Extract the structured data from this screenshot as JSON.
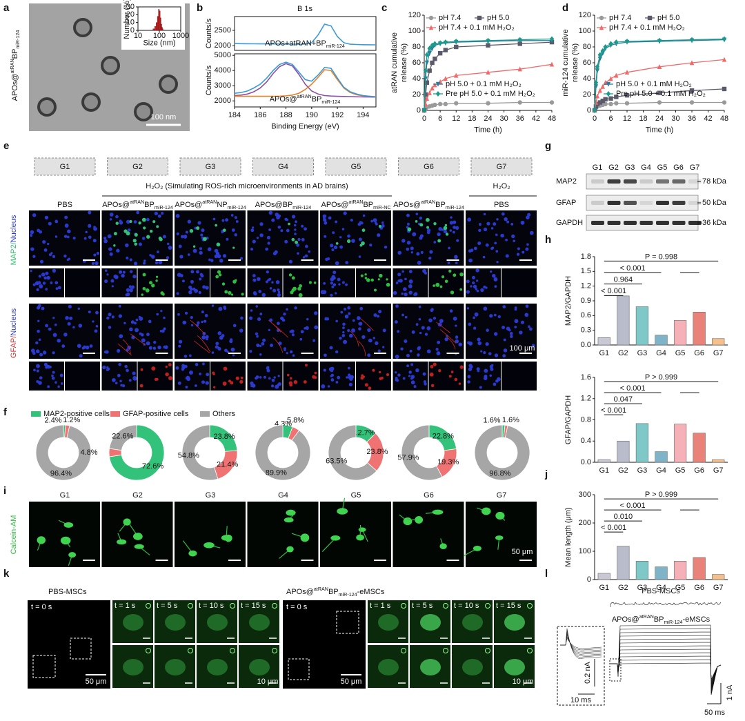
{
  "figure": {
    "panel_labels": [
      "a",
      "b",
      "c",
      "d",
      "e",
      "f",
      "g",
      "h",
      "i",
      "j",
      "k",
      "l"
    ],
    "a": {
      "sample": [
        "APOs@",
        {
          "sup": "atRAN"
        },
        "BP",
        {
          "sub": "miR-124"
        }
      ],
      "scale": "100 nm"
    },
    "e": {
      "groups": [
        "G1",
        "G2",
        "G3",
        "G4",
        "G5",
        "G6",
        "G7"
      ],
      "condition": "H₂O₂ (Simulating ROS-rich microenvironments in AD brains)",
      "condition_g7": "H₂O₂",
      "treatments": [
        [
          "PBS"
        ],
        [
          "APOs@",
          {
            "sup": "atRAN"
          },
          "BP",
          {
            "sub": "miR-124"
          }
        ],
        [
          "APOs@",
          {
            "sup": "atRAN"
          },
          "NP",
          {
            "sub": "miR-124"
          }
        ],
        [
          "APOs@BP",
          {
            "sub": "miR-124"
          }
        ],
        [
          "APOs@",
          {
            "sup": "atRAN"
          },
          "BP",
          {
            "sub": "miR-NC"
          }
        ],
        [
          "APOs@",
          {
            "sup": "atRAN"
          },
          "BP",
          {
            "sub": "miR-124"
          }
        ],
        [
          "PBS"
        ]
      ],
      "rows": [
        [
          {
            "text": "MAP2",
            "color": "#2fbf6f"
          },
          {
            "text": "/",
            "color": "#2fbf6f"
          },
          {
            "text": "Nucleus",
            "color": "#2b3bd6"
          }
        ],
        [
          {
            "text": "GFAP",
            "color": "#e03030"
          },
          {
            "text": "/",
            "color": "#e03030"
          },
          {
            "text": "Nucleus",
            "color": "#2b3bd6"
          }
        ]
      ],
      "scale": "100 μm"
    },
    "g": {
      "lanes": [
        "G1",
        "G2",
        "G3",
        "G4",
        "G5",
        "G6",
        "G7"
      ],
      "proteins": [
        "MAP2",
        "GFAP",
        "GAPDH"
      ],
      "markers": [
        "78 kDa",
        "50 kDa",
        "36 kDa"
      ]
    },
    "i": {
      "stain": [
        {
          "text": "Calcein-AM",
          "color": "#2fbf3f"
        }
      ],
      "groups": [
        "G1",
        "G2",
        "G3",
        "G4",
        "G5",
        "G6",
        "G7"
      ],
      "scale": "50 μm"
    },
    "k": {
      "control": "PBS-MSCs",
      "treated": [
        "APOs@",
        {
          "sup": "atRAN"
        },
        "BP",
        {
          "sub": "miR-124"
        },
        "-eMSCs"
      ],
      "times": [
        "t = 0 s",
        "t = 1 s",
        "t = 5 s",
        "t = 10 s",
        "t = 15 s"
      ],
      "scale_large": "50 μm",
      "scale_small": "10 μm"
    },
    "l": {
      "control": "PBS-MSCs",
      "treated": [
        "APOs@",
        {
          "sup": "atRAN"
        },
        "BP",
        {
          "sub": "miR-124"
        },
        "-eMSCs"
      ],
      "inset_current": "0.2 nA",
      "inset_time": "10 ms",
      "current": "1 nA",
      "time": "50 ms"
    }
  },
  "chart_data": [
    {
      "type": "line",
      "title": "B 1s",
      "ylabel": "Counts/s",
      "annotation": [
        "APOs+atRAN+BP",
        {
          "sub": "miR-124"
        }
      ],
      "xlim": [
        184,
        195
      ],
      "ylim": [
        1850,
        2950
      ],
      "yticks": [
        2000,
        2500
      ],
      "x": [
        184,
        184.5,
        185,
        185.5,
        186,
        186.5,
        187,
        187.5,
        188,
        188.5,
        189,
        189.5,
        190,
        190.5,
        191,
        191.5,
        192,
        192.5,
        193,
        193.5,
        194,
        194.5,
        195
      ],
      "series": [
        {
          "color": "#3a9ad9",
          "values": [
            2070,
            2068,
            2066,
            2064,
            2062,
            2060,
            2058,
            2056,
            2054,
            2052,
            2050,
            2055,
            2100,
            2350,
            2700,
            2650,
            2300,
            2100,
            2050,
            2040,
            2035,
            2032,
            2030
          ]
        }
      ]
    },
    {
      "type": "line",
      "ylabel": "Counts/s",
      "xlabel": "Binding Energy (eV)",
      "annotation": [
        "APOs@",
        {
          "sup": "atRAN"
        },
        "BP",
        {
          "sub": "miR-124"
        }
      ],
      "xlim": [
        184,
        195
      ],
      "xticks": [
        184,
        186,
        188,
        190,
        192,
        194
      ],
      "ylim": [
        1600,
        5100
      ],
      "yticks": [
        2000,
        3000,
        4000,
        5000
      ],
      "x": [
        184,
        184.5,
        185,
        185.5,
        186,
        186.5,
        187,
        187.5,
        188,
        188.5,
        189,
        189.5,
        190,
        190.5,
        191,
        191.5,
        192,
        192.5,
        193,
        193.5,
        194,
        194.5,
        195
      ],
      "series": [
        {
          "color": "#8a4fa8",
          "values": [
            2350,
            2380,
            2450,
            2600,
            2850,
            3250,
            3800,
            4250,
            4450,
            4300,
            3750,
            3100,
            2650,
            2450,
            2350,
            2320,
            2300,
            2290,
            2280,
            2270,
            2260,
            2255,
            2250
          ]
        },
        {
          "color": "#e8802a",
          "values": [
            2300,
            2300,
            2300,
            2300,
            2300,
            2300,
            2300,
            2310,
            2330,
            2380,
            2500,
            2750,
            3100,
            3550,
            4050,
            4000,
            3400,
            2850,
            2550,
            2400,
            2330,
            2300,
            2280
          ]
        },
        {
          "color": "#3a9ad9",
          "values": [
            2500,
            2550,
            2650,
            2850,
            3100,
            3500,
            4000,
            4400,
            4550,
            4400,
            3900,
            3400,
            3300,
            3700,
            4200,
            4150,
            3500,
            2900,
            2600,
            2450,
            2350,
            2300,
            2250
          ]
        }
      ]
    },
    {
      "type": "line",
      "xlabel": "Time (h)",
      "ylabel": [
        "atRAN cumulative",
        "release (%)"
      ],
      "xlim": [
        0,
        48
      ],
      "xticks": [
        0,
        6,
        12,
        18,
        24,
        30,
        36,
        42,
        48
      ],
      "ylim": [
        0,
        120
      ],
      "yticks": [
        0,
        20,
        40,
        60,
        80,
        100,
        120
      ],
      "x": [
        0,
        0.5,
        1,
        2,
        3,
        4,
        6,
        8,
        12,
        24,
        36,
        48
      ],
      "series": [
        {
          "name": "pH 7.4",
          "color": "#9a9a9a",
          "marker": "circle",
          "values": [
            0,
            2,
            4,
            5,
            6,
            7,
            8,
            8,
            9,
            9,
            10,
            10
          ]
        },
        {
          "name": "pH 5.0",
          "color": "#5a5a6a",
          "marker": "square",
          "values": [
            0,
            20,
            35,
            50,
            60,
            65,
            72,
            76,
            80,
            82,
            84,
            86
          ]
        },
        {
          "name": "pH 7.4 + 0.1 mM H₂O₂",
          "color": "#f06a6a",
          "marker": "triangle",
          "values": [
            0,
            8,
            15,
            22,
            28,
            32,
            36,
            40,
            44,
            48,
            52,
            58
          ]
        },
        {
          "name": "pH 5.0 + 0.1 mM H₂O₂",
          "color": "#2b7c9c",
          "marker": "down-triangle",
          "values": [
            0,
            40,
            60,
            72,
            78,
            82,
            84,
            85,
            86,
            87,
            88,
            88
          ]
        },
        {
          "name": "Pre pH 5.0 + 0.1 mM H₂O₂",
          "color": "#1a9a8a",
          "marker": "diamond",
          "values": [
            0,
            50,
            70,
            78,
            82,
            84,
            85,
            86,
            87,
            88,
            89,
            90
          ]
        }
      ]
    },
    {
      "type": "line",
      "xlabel": "Time (h)",
      "ylabel": [
        "miR-124 cumulative",
        "release (%)"
      ],
      "xlim": [
        0,
        48
      ],
      "xticks": [
        0,
        6,
        12,
        18,
        24,
        30,
        36,
        42,
        48
      ],
      "ylim": [
        0,
        120
      ],
      "yticks": [
        0,
        20,
        40,
        60,
        80,
        100,
        120
      ],
      "x": [
        0,
        0.5,
        1,
        2,
        3,
        4,
        6,
        8,
        12,
        24,
        36,
        48
      ],
      "series": [
        {
          "name": "pH 7.4",
          "color": "#9a9a9a",
          "marker": "circle",
          "values": [
            0,
            3,
            5,
            6,
            7,
            8,
            8,
            9,
            9,
            10,
            10,
            10
          ]
        },
        {
          "name": "pH 5.0",
          "color": "#5a5a6a",
          "marker": "square",
          "values": [
            0,
            5,
            8,
            10,
            12,
            14,
            15,
            17,
            19,
            22,
            25,
            27
          ]
        },
        {
          "name": "pH 7.4 + 0.1 mM H₂O₂",
          "color": "#f06a6a",
          "marker": "triangle",
          "values": [
            0,
            10,
            18,
            25,
            30,
            35,
            40,
            44,
            48,
            55,
            60,
            64
          ]
        },
        {
          "name": "pH 5.0 + 0.1 mM H₂O₂",
          "color": "#2b7c9c",
          "marker": "down-triangle",
          "values": [
            0,
            30,
            50,
            65,
            72,
            78,
            82,
            84,
            86,
            87,
            88,
            89
          ]
        },
        {
          "name": "Pre pH 5.0 + 0.1 mM H₂O₂",
          "color": "#1a9a8a",
          "marker": "diamond",
          "values": [
            0,
            35,
            55,
            70,
            75,
            80,
            84,
            86,
            87,
            88,
            89,
            90
          ]
        }
      ]
    },
    {
      "type": "bar",
      "ylabel": "MAP2/GAPDH",
      "categories": [
        "G1",
        "G2",
        "G3",
        "G4",
        "G5",
        "G6",
        "G7"
      ],
      "values": [
        0.15,
        1.0,
        0.78,
        0.2,
        0.5,
        0.67,
        0.13
      ],
      "colors": [
        "#c9c9d6",
        "#b8bccb",
        "#7fc8c8",
        "#7fb3c8",
        "#f5b0b8",
        "#e9837a",
        "#f5c08a"
      ],
      "ylim": [
        0,
        1.8
      ],
      "yticks": [
        {
          "value": 0,
          "label": "0.0"
        },
        0.3,
        0.6,
        0.9,
        1.2,
        1.5,
        1.8
      ],
      "annotations": [
        "< 0.001",
        "0.964",
        "< 0.001",
        "P = 0.998"
      ]
    },
    {
      "type": "bar",
      "ylabel": "GFAP/GAPDH",
      "categories": [
        "G1",
        "G2",
        "G3",
        "G4",
        "G5",
        "G6",
        "G7"
      ],
      "values": [
        0.05,
        0.4,
        0.73,
        0.2,
        0.72,
        0.55,
        0.05
      ],
      "colors": [
        "#c9c9d6",
        "#b8bccb",
        "#7fc8c8",
        "#7fb3c8",
        "#f5b0b8",
        "#e9837a",
        "#f5c08a"
      ],
      "ylim": [
        0,
        1.6
      ],
      "yticks": [
        {
          "value": 0,
          "label": "0.0"
        },
        0.4,
        0.8,
        1.2,
        1.6
      ],
      "annotations": [
        "< 0.001",
        "0.047",
        "< 0.001",
        "P > 0.999"
      ]
    },
    {
      "type": "bar",
      "ylabel": "Mean length (μm)",
      "categories": [
        "G1",
        "G2",
        "G3",
        "G4",
        "G5",
        "G6",
        "G7"
      ],
      "values": [
        22,
        118,
        65,
        45,
        65,
        78,
        18
      ],
      "colors": [
        "#c9c9d6",
        "#b8bccb",
        "#7fc8c8",
        "#7fb3c8",
        "#f5b0b8",
        "#e9837a",
        "#f5c08a"
      ],
      "ylim": [
        0,
        300
      ],
      "yticks": [
        0,
        100,
        200,
        300
      ],
      "annotations": [
        "< 0.001",
        "0.010",
        "< 0.001",
        "P > 0.999"
      ]
    },
    {
      "type": "donut",
      "categories": [
        "MAP2-positive cells",
        "GFAP-positive cells",
        "Others"
      ],
      "colors": [
        "#33c27a",
        "#f07373",
        "#a6a6a6"
      ],
      "groups": [
        {
          "values": [
            1.2,
            2.4,
            96.4
          ],
          "value_labels": [
            "1.2%",
            "2.4%",
            "96.4%"
          ]
        },
        {
          "values": [
            72.6,
            4.8,
            22.6
          ],
          "value_labels": [
            "72.6%",
            "4.8%",
            "22.6%"
          ]
        },
        {
          "values": [
            23.8,
            21.4,
            54.8
          ],
          "value_labels": [
            "23.8%",
            "21.4%",
            "54.8%"
          ]
        },
        {
          "values": [
            5.8,
            4.3,
            89.9
          ],
          "value_labels": [
            "5.8%",
            "4.3%",
            "89.9%"
          ]
        },
        {
          "values": [
            12.7,
            23.8,
            63.5
          ],
          "value_labels": [
            "12.7%",
            "23.8%",
            "63.5%"
          ]
        },
        {
          "values": [
            22.8,
            19.3,
            57.9
          ],
          "value_labels": [
            "22.8%",
            "19.3%",
            "57.9%"
          ]
        },
        {
          "values": [
            1.6,
            1.6,
            96.8
          ],
          "value_labels": [
            "1.6%",
            "1.6%",
            "96.8%"
          ]
        }
      ]
    },
    {
      "type": "histogram",
      "xlabel": "Size (nm)",
      "ylabel": "Number (%)",
      "color": "#c0282a",
      "xlog": true,
      "bins": [
        50,
        60,
        70,
        80,
        90,
        100,
        110,
        120,
        130,
        140,
        150
      ],
      "counts": [
        2,
        5,
        10,
        18,
        27,
        25,
        16,
        8,
        4,
        2
      ],
      "xlim": [
        10,
        1000
      ],
      "xticks": [
        10,
        100,
        1000
      ],
      "ylim": [
        0,
        30
      ],
      "yticks": [
        0,
        10,
        20,
        30
      ]
    }
  ]
}
